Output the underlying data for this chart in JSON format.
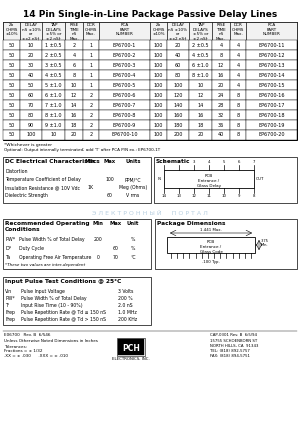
{
  "title": "14 Pin Single-in-Line Package Passive Delay Lines",
  "headers": [
    "Zo\nOHMS\n±10%",
    "DELAY\nnS ±10%\nor\n±x2 nS†",
    "TAP\nDELAYS\n±5% or\n±2 nS†",
    "RISE\nTIME\nnS\nMax.",
    "DCR\nOHMS\nMax.",
    "PCA\nPART\nNUMBER"
  ],
  "left_data": [
    [
      "50",
      "10",
      "1 ±0.5",
      "2",
      "1",
      "EP6700-1"
    ],
    [
      "50",
      "20",
      "2 ±0.5",
      "4",
      "1",
      "EP6700-2"
    ],
    [
      "50",
      "30",
      "3 ±0.5",
      "6",
      "1",
      "EP6700-3"
    ],
    [
      "50",
      "40",
      "4 ±0.5",
      "8",
      "1",
      "EP6700-4"
    ],
    [
      "50",
      "50",
      "5 ±1.0",
      "10",
      "1",
      "EP6700-5"
    ],
    [
      "50",
      "60",
      "6 ±1.0",
      "12",
      "2",
      "EP6700-6"
    ],
    [
      "50",
      "70",
      "7 ±1.0",
      "14",
      "2",
      "EP6700-7"
    ],
    [
      "50",
      "80",
      "8 ±1.0",
      "16",
      "2",
      "EP6700-8"
    ],
    [
      "50",
      "90",
      "9 ±1.0",
      "18",
      "2",
      "EP6700-9"
    ],
    [
      "50",
      "100",
      "10",
      "20",
      "2",
      "EP6700-10"
    ]
  ],
  "right_data": [
    [
      "100",
      "20",
      "2 ±0.5",
      "4",
      "4",
      "EP6700-11"
    ],
    [
      "100",
      "40",
      "4 ±0.5",
      "8",
      "4",
      "EP6700-12"
    ],
    [
      "100",
      "60",
      "6 ±1.0",
      "12",
      "4",
      "EP6700-13"
    ],
    [
      "100",
      "80",
      "8 ±1.0",
      "16",
      "4",
      "EP6700-14"
    ],
    [
      "100",
      "100",
      "10",
      "20",
      "4",
      "EP6700-15"
    ],
    [
      "100",
      "120",
      "12",
      "24",
      "8",
      "EP6700-16"
    ],
    [
      "100",
      "140",
      "14",
      "28",
      "8",
      "EP6700-17"
    ],
    [
      "100",
      "160",
      "16",
      "32",
      "8",
      "EP6700-18"
    ],
    [
      "100",
      "180",
      "18",
      "36",
      "8",
      "EP6700-19"
    ],
    [
      "100",
      "200",
      "20",
      "40",
      "8",
      "EP6700-20"
    ]
  ],
  "footnote1": "*Whichever is greater",
  "footnote2": "Optional: Output internally terminated; add 'T' after PCA P/N ex.: EP6700-1T",
  "dc_title": "DC Electrical Characteristics",
  "dc_col_headers": [
    "Min",
    "Max",
    "Units"
  ],
  "dc_rows": [
    [
      "Distortion",
      "",
      "",
      ""
    ],
    [
      "Temperature Coefficient of Delay",
      "",
      "100",
      "PPM/°C"
    ],
    [
      "Insulation Resistance @ 10V Vdc",
      "1K",
      "",
      "Meg (Ohms)"
    ],
    [
      "Dielectric Strength",
      "",
      "60",
      "V rms"
    ]
  ],
  "rec_title": "Recommended Operating\nConditions",
  "rec_col_headers": [
    "Min",
    "Max",
    "Unit"
  ],
  "rec_rows": [
    [
      "PW*",
      "Pulse Width % of Total Delay",
      "200",
      "",
      "%"
    ],
    [
      "D*",
      "Duty Cycle",
      "",
      "60",
      "%"
    ],
    [
      "Ta",
      "Operating Free Air Temperature",
      "0",
      "70",
      "°C"
    ]
  ],
  "rec_footnote": "*These two values are inter-dependent",
  "input_title": "Input Pulse Test Conditions @ 25°C",
  "input_rows": [
    [
      "Vin",
      "Pulse Input Voltage",
      "3 Volts"
    ],
    [
      "PW*",
      "Pulse Width % of Total Delay",
      "200 %"
    ],
    [
      "Tr",
      "Input Rise Time (10 - 90%)",
      "2.0 nS"
    ],
    [
      "Frep",
      "Pulse Repetition Rate @ Td ≤ 150 nS",
      "1.0 MHz"
    ],
    [
      "Frep",
      "Pulse Repetition Rate @ Td > 150 nS",
      "200 KHz"
    ]
  ],
  "pkg_title": "Package Dimensions",
  "sch_title": "Schematic",
  "bottom_left": "E06700   Rev. B  6/546",
  "bottom_note1": "Unless Otherwise Noted Dimensions in Inches",
  "bottom_note2": "Tolerances:",
  "bottom_note3": "Fractions = ± 1/32",
  "bottom_note4": ".XX = ± .030      .XXX = ± .010",
  "bottom_right1": "CAP-0301 Rev. B  6/5/94",
  "bottom_right2": "15755 SCHOENBORN ST",
  "bottom_right3": "NORTH HILLS, CA  91343",
  "bottom_right4": "TEL: (818) 892-5757",
  "bottom_right5": "FAX: (818) 894-5751",
  "watermark": "Э Л Е К Т Р О Н Н Ы Й     П О Р Т А Л",
  "bg_color": "#ffffff",
  "watermark_color": "#b8cfe0"
}
